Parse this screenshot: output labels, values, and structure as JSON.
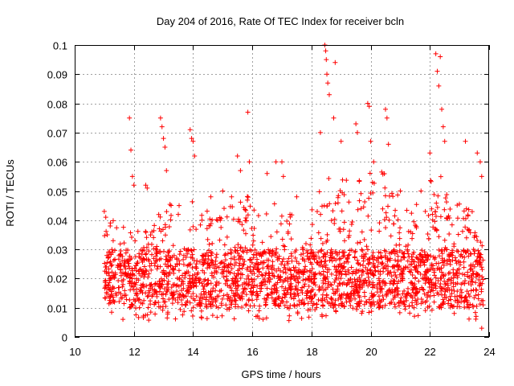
{
  "chart_data": {
    "type": "scatter",
    "title": "Day 204 of 2016, Rate Of TEC Index for receiver bcln",
    "xlabel": "GPS time / hours",
    "ylabel": "ROTI / TECUs",
    "xlim": [
      10,
      24
    ],
    "ylim": [
      0,
      0.1
    ],
    "x_ticks": [
      10,
      12,
      14,
      16,
      18,
      20,
      22,
      24
    ],
    "x_tick_labels": [
      "10",
      "12",
      "14",
      "16",
      "18",
      "20",
      "22",
      "24"
    ],
    "y_ticks": [
      0,
      0.01,
      0.02,
      0.03,
      0.04,
      0.05,
      0.06,
      0.07,
      0.08,
      0.09,
      0.1
    ],
    "y_tick_labels": [
      "0",
      "0.01",
      "0.02",
      "0.03",
      "0.04",
      "0.05",
      "0.06",
      "0.07",
      "0.08",
      "0.09",
      "0.1"
    ],
    "grid": true,
    "marker": "+",
    "series": [
      {
        "name": "ROTI",
        "color": "#ff0000",
        "points": [
          [
            11.0,
            0.043
          ],
          [
            11.05,
            0.041
          ],
          [
            11.1,
            0.035
          ],
          [
            11.2,
            0.038
          ],
          [
            11.3,
            0.033
          ],
          [
            11.85,
            0.075
          ],
          [
            11.9,
            0.064
          ],
          [
            11.95,
            0.055
          ],
          [
            12.0,
            0.052
          ],
          [
            12.4,
            0.052
          ],
          [
            12.45,
            0.051
          ],
          [
            12.9,
            0.075
          ],
          [
            12.95,
            0.072
          ],
          [
            13.0,
            0.068
          ],
          [
            13.05,
            0.065
          ],
          [
            13.1,
            0.057
          ],
          [
            13.9,
            0.071
          ],
          [
            13.95,
            0.068
          ],
          [
            14.0,
            0.067
          ],
          [
            14.05,
            0.062
          ],
          [
            14.3,
            0.04
          ],
          [
            14.6,
            0.048
          ],
          [
            15.0,
            0.05
          ],
          [
            15.3,
            0.048
          ],
          [
            15.5,
            0.062
          ],
          [
            15.6,
            0.057
          ],
          [
            15.85,
            0.077
          ],
          [
            15.9,
            0.06
          ],
          [
            16.5,
            0.056
          ],
          [
            16.8,
            0.06
          ],
          [
            17.0,
            0.06
          ],
          [
            17.05,
            0.055
          ],
          [
            17.5,
            0.048
          ],
          [
            18.3,
            0.07
          ],
          [
            18.45,
            0.1
          ],
          [
            18.48,
            0.098
          ],
          [
            18.5,
            0.095
          ],
          [
            18.52,
            0.09
          ],
          [
            18.55,
            0.087
          ],
          [
            18.6,
            0.083
          ],
          [
            18.75,
            0.075
          ],
          [
            18.8,
            0.094
          ],
          [
            19.0,
            0.067
          ],
          [
            19.5,
            0.073
          ],
          [
            19.55,
            0.07
          ],
          [
            19.9,
            0.08
          ],
          [
            19.95,
            0.079
          ],
          [
            20.0,
            0.067
          ],
          [
            20.1,
            0.06
          ],
          [
            20.5,
            0.078
          ],
          [
            20.55,
            0.075
          ],
          [
            20.6,
            0.066
          ],
          [
            21.0,
            0.05
          ],
          [
            21.7,
            0.05
          ],
          [
            22.0,
            0.063
          ],
          [
            22.2,
            0.097
          ],
          [
            22.25,
            0.091
          ],
          [
            22.3,
            0.086
          ],
          [
            22.35,
            0.096
          ],
          [
            22.4,
            0.078
          ],
          [
            22.45,
            0.072
          ],
          [
            22.5,
            0.067
          ],
          [
            23.2,
            0.067
          ],
          [
            23.6,
            0.063
          ],
          [
            23.7,
            0.06
          ],
          [
            23.75,
            0.055
          ],
          [
            23.75,
            0.003
          ]
        ],
        "bands": [
          [
            11.0,
            11.5,
            0.005,
            0.04,
            90
          ],
          [
            11.5,
            12.0,
            0.005,
            0.038,
            90
          ],
          [
            12.0,
            12.5,
            0.006,
            0.04,
            90
          ],
          [
            12.5,
            13.0,
            0.005,
            0.042,
            90
          ],
          [
            13.0,
            13.5,
            0.006,
            0.046,
            90
          ],
          [
            13.5,
            14.0,
            0.007,
            0.048,
            90
          ],
          [
            14.0,
            14.5,
            0.006,
            0.045,
            90
          ],
          [
            14.5,
            15.0,
            0.006,
            0.042,
            90
          ],
          [
            15.0,
            15.5,
            0.006,
            0.046,
            90
          ],
          [
            15.5,
            16.0,
            0.006,
            0.05,
            100
          ],
          [
            16.0,
            16.5,
            0.005,
            0.044,
            90
          ],
          [
            16.5,
            17.0,
            0.006,
            0.046,
            90
          ],
          [
            17.0,
            17.5,
            0.005,
            0.042,
            90
          ],
          [
            17.5,
            18.0,
            0.005,
            0.034,
            90
          ],
          [
            18.0,
            18.5,
            0.006,
            0.05,
            100
          ],
          [
            18.5,
            19.0,
            0.008,
            0.058,
            100
          ],
          [
            19.0,
            19.5,
            0.008,
            0.058,
            100
          ],
          [
            19.5,
            20.0,
            0.008,
            0.06,
            100
          ],
          [
            20.0,
            20.5,
            0.008,
            0.058,
            100
          ],
          [
            20.5,
            21.0,
            0.007,
            0.05,
            100
          ],
          [
            21.0,
            21.5,
            0.007,
            0.044,
            90
          ],
          [
            21.5,
            22.0,
            0.007,
            0.05,
            100
          ],
          [
            22.0,
            22.5,
            0.008,
            0.056,
            100
          ],
          [
            22.5,
            23.0,
            0.007,
            0.05,
            100
          ],
          [
            23.0,
            23.5,
            0.006,
            0.044,
            90
          ],
          [
            23.5,
            23.8,
            0.004,
            0.036,
            60
          ]
        ]
      }
    ]
  }
}
